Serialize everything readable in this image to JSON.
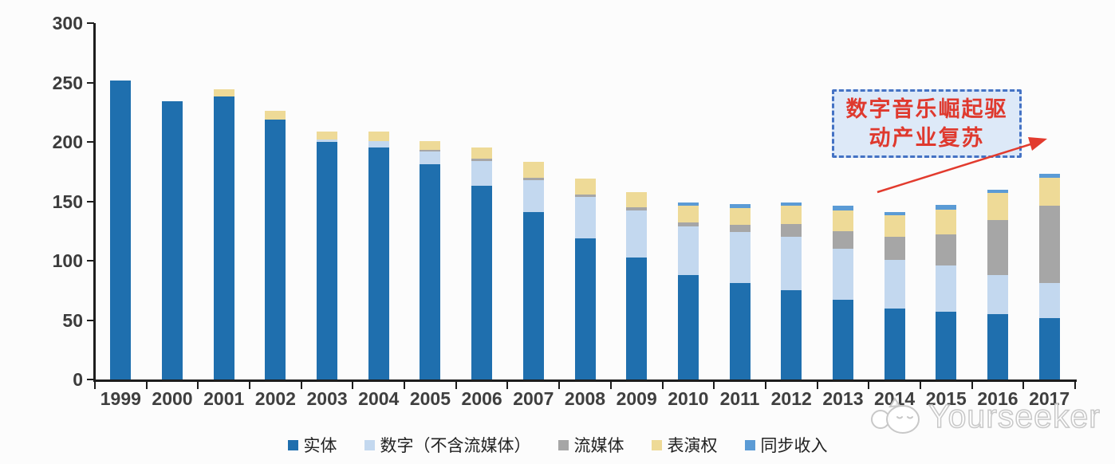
{
  "chart_data": {
    "type": "bar",
    "stacked": true,
    "categories": [
      "1999",
      "2000",
      "2001",
      "2002",
      "2003",
      "2004",
      "2005",
      "2006",
      "2007",
      "2008",
      "2009",
      "2010",
      "2011",
      "2012",
      "2013",
      "2014",
      "2015",
      "2016",
      "2017"
    ],
    "series": [
      {
        "name": "实体",
        "color": "#1f6fae",
        "values": [
          252,
          234,
          238,
          219,
          200,
          195,
          181,
          163,
          141,
          119,
          103,
          88,
          81,
          75,
          67,
          60,
          57,
          55,
          52
        ]
      },
      {
        "name": "数字（不含流媒体）",
        "color": "#c3d8ef",
        "values": [
          0,
          0,
          0,
          0,
          2,
          6,
          11,
          21,
          27,
          35,
          39,
          41,
          43,
          45,
          43,
          41,
          39,
          33,
          29
        ]
      },
      {
        "name": "流媒体",
        "color": "#a6a6a6",
        "values": [
          0,
          0,
          0,
          0,
          0,
          0,
          1,
          2,
          2,
          2,
          3,
          3,
          6,
          11,
          15,
          19,
          26,
          46,
          65
        ]
      },
      {
        "name": "表演权",
        "color": "#eeda97",
        "values": [
          0,
          0,
          6,
          7,
          7,
          8,
          8,
          9,
          13,
          13,
          13,
          14,
          14,
          15,
          17,
          18,
          21,
          23,
          24
        ]
      },
      {
        "name": "同步收入",
        "color": "#5b9bd5",
        "values": [
          0,
          0,
          0,
          0,
          0,
          0,
          0,
          0,
          0,
          0,
          0,
          3,
          4,
          3,
          4,
          3,
          4,
          3,
          3
        ]
      }
    ],
    "title": "",
    "xlabel": "",
    "ylabel": "",
    "ylim": [
      0,
      300
    ],
    "yticks": [
      0,
      50,
      100,
      150,
      200,
      250,
      300
    ],
    "grid": false,
    "legend_position": "bottom"
  },
  "annotation": {
    "line1": "数字音乐崛起驱",
    "line2": "动产业复苏",
    "text_color": "#df392e",
    "border_color": "#4472c4",
    "fill_color": "#dde9f8",
    "arrow_color": "#e23b2e"
  },
  "watermark": {
    "text": "Yourseeker",
    "logo": "mascot-face-icon"
  },
  "colors": {
    "axis": "#1d1d1d",
    "tick_label": "#3c3c3c",
    "background": "#fcfcfc"
  }
}
